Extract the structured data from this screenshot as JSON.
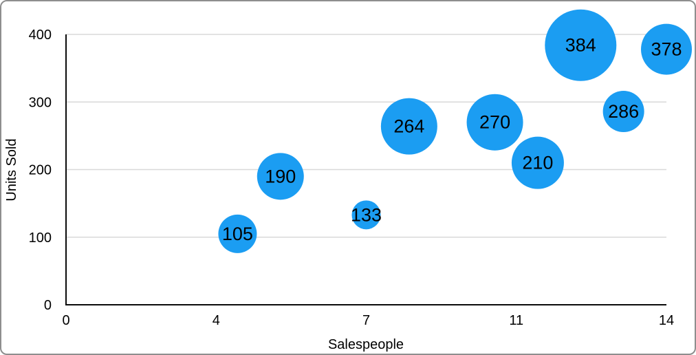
{
  "figure": {
    "background_color": "#ffffff",
    "border_color": "#8e8e8e",
    "axis_line_color": "#0a0a0a",
    "gridline_color": "#d8d8d8"
  },
  "chart_data": {
    "type": "scatter",
    "subtype": "bubble",
    "title": "",
    "xlabel": "Salespeople",
    "ylabel": "Units Sold",
    "xlim": [
      0,
      14
    ],
    "ylim": [
      0,
      400
    ],
    "grid": "horizontal gridlines at y ticks, drawn behind bubbles",
    "legend": "none",
    "bubble_color": "#1b9df2",
    "bubble_label_color": "#000000",
    "x_ticks": [
      {
        "pos": 0,
        "label": "0"
      },
      {
        "pos": 3.5,
        "label": "4"
      },
      {
        "pos": 7,
        "label": "7"
      },
      {
        "pos": 10.5,
        "label": "11"
      },
      {
        "pos": 14,
        "label": "14"
      }
    ],
    "y_ticks": [
      {
        "pos": 0,
        "label": "0"
      },
      {
        "pos": 100,
        "label": "100"
      },
      {
        "pos": 200,
        "label": "200"
      },
      {
        "pos": 300,
        "label": "300"
      },
      {
        "pos": 400,
        "label": "400"
      }
    ],
    "points": [
      {
        "x": 4,
        "y": 105,
        "label": "105",
        "radius_px": 28
      },
      {
        "x": 5,
        "y": 190,
        "label": "190",
        "radius_px": 34
      },
      {
        "x": 7,
        "y": 133,
        "label": "133",
        "radius_px": 21
      },
      {
        "x": 8,
        "y": 264,
        "label": "264",
        "radius_px": 41
      },
      {
        "x": 10,
        "y": 270,
        "label": "270",
        "radius_px": 41
      },
      {
        "x": 11,
        "y": 210,
        "label": "210",
        "radius_px": 38
      },
      {
        "x": 12,
        "y": 384,
        "label": "384",
        "radius_px": 52
      },
      {
        "x": 13,
        "y": 286,
        "label": "286",
        "radius_px": 30
      },
      {
        "x": 14,
        "y": 378,
        "label": "378",
        "radius_px": 37
      }
    ]
  }
}
